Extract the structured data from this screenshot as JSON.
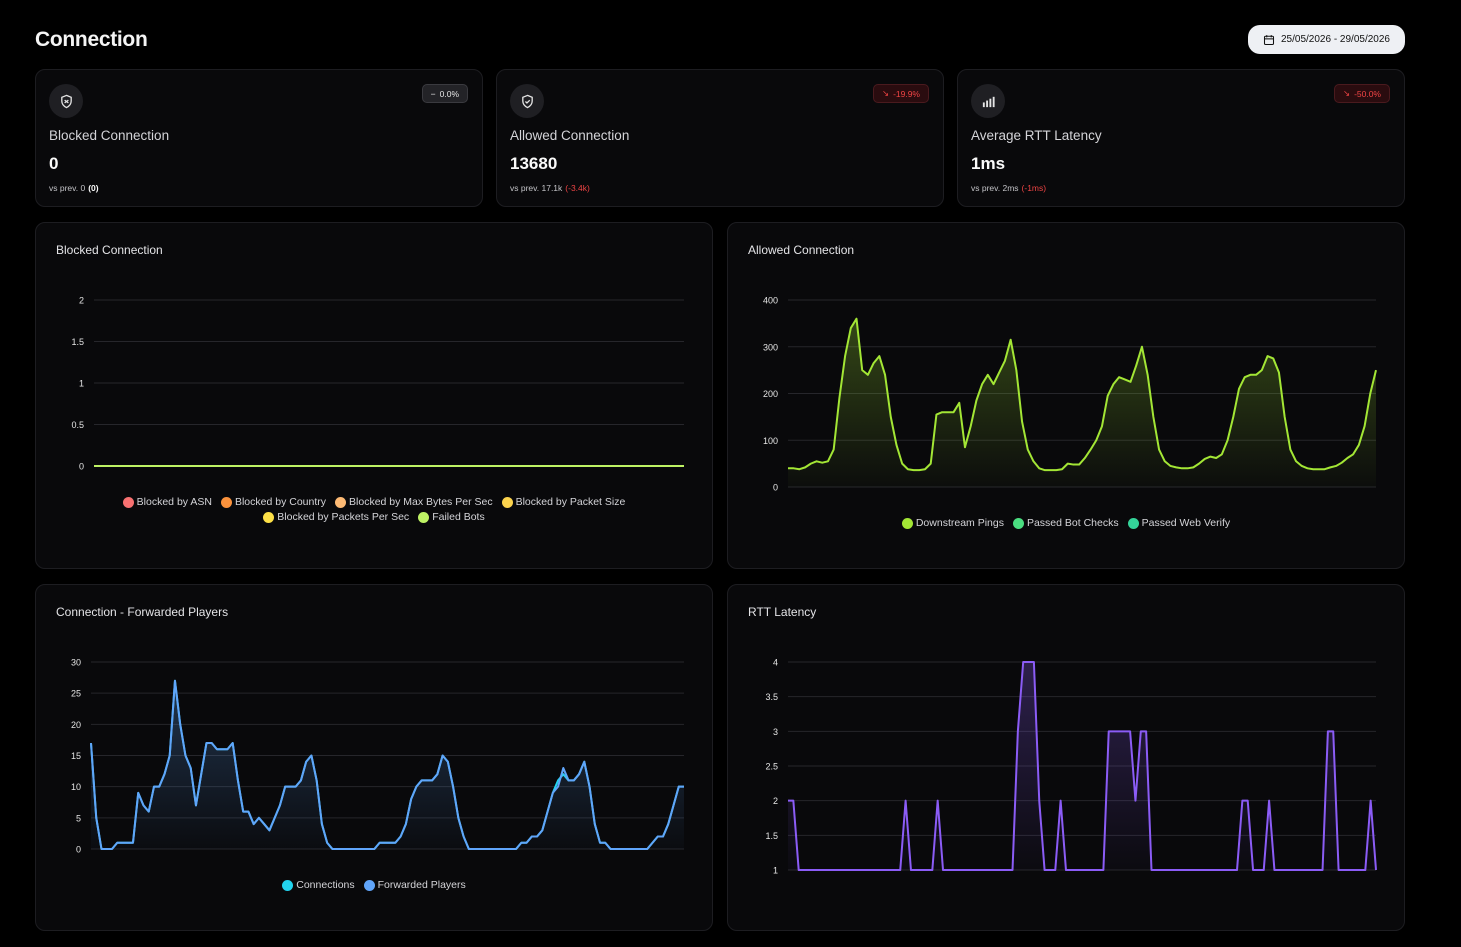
{
  "page": {
    "title": "Connection",
    "date_range": "25/05/2026 - 29/05/2026"
  },
  "stats": [
    {
      "icon": "shield-x-icon",
      "label": "Blocked Connection",
      "value": "0",
      "prev_text": "vs prev. 0",
      "prev_delta": "(0)",
      "badge": "0.0%",
      "trend": "neutral"
    },
    {
      "icon": "shield-check-icon",
      "label": "Allowed Connection",
      "value": "13680",
      "prev_text": "vs prev. 17.1k",
      "prev_delta": "(-3.4k)",
      "badge": "-19.9%",
      "trend": "down"
    },
    {
      "icon": "signal-bars-icon",
      "label": "Average RTT Latency",
      "value": "1ms",
      "prev_text": "vs prev. 2ms",
      "prev_delta": "(-1ms)",
      "badge": "-50.0%",
      "trend": "down"
    }
  ],
  "colors": {
    "blocked_asn": "#f87171",
    "blocked_country": "#fb923c",
    "blocked_max_bytes": "#fdba74",
    "blocked_packet_size": "#fcd34d",
    "blocked_packets_per_sec": "#fde047",
    "failed_bots": "#bef264",
    "downstream": "#a3e635",
    "passed_bot_checks": "#4ade80",
    "passed_web_verify": "#34d399",
    "connections": "#22d3ee",
    "forwarded": "#60a5fa",
    "rtt": "#8b5cf6"
  },
  "chart_data": [
    {
      "type": "line",
      "title": "Blocked Connection",
      "ylim": [
        0,
        2
      ],
      "yticks": [
        "0",
        "0.5",
        "1",
        "1.5",
        "2"
      ],
      "grid": true,
      "legend_position": "bottom",
      "series": [
        {
          "name": "Blocked by ASN",
          "color": "#f87171",
          "values": [
            0,
            0
          ]
        },
        {
          "name": "Blocked by Country",
          "color": "#fb923c",
          "values": [
            0,
            0
          ]
        },
        {
          "name": "Blocked by Max Bytes Per Sec",
          "color": "#fdba74",
          "values": [
            0,
            0
          ]
        },
        {
          "name": "Blocked by Packet Size",
          "color": "#fcd34d",
          "values": [
            0,
            0
          ]
        },
        {
          "name": "Blocked by Packets Per Sec",
          "color": "#fde047",
          "values": [
            0,
            0
          ]
        },
        {
          "name": "Failed Bots",
          "color": "#bef264",
          "values": [
            0,
            0
          ]
        }
      ]
    },
    {
      "type": "area",
      "title": "Allowed Connection",
      "ylim": [
        0,
        400
      ],
      "yticks": [
        "0",
        "100",
        "200",
        "300",
        "400"
      ],
      "grid": true,
      "legend_position": "bottom",
      "series": [
        {
          "name": "Downstream Pings",
          "color": "#a3e635",
          "values": [
            40,
            40,
            38,
            42,
            50,
            55,
            52,
            55,
            80,
            190,
            280,
            340,
            360,
            250,
            240,
            265,
            280,
            240,
            150,
            90,
            50,
            38,
            36,
            36,
            38,
            50,
            155,
            160,
            160,
            160,
            180,
            85,
            130,
            185,
            220,
            240,
            220,
            245,
            270,
            315,
            250,
            140,
            80,
            55,
            40,
            36,
            36,
            36,
            38,
            50,
            48,
            48,
            62,
            80,
            100,
            130,
            195,
            220,
            235,
            230,
            225,
            260,
            300,
            240,
            150,
            80,
            55,
            45,
            42,
            40,
            40,
            42,
            50,
            60,
            65,
            62,
            70,
            100,
            150,
            210,
            235,
            240,
            240,
            250,
            280,
            275,
            245,
            150,
            80,
            55,
            45,
            40,
            38,
            38,
            38,
            42,
            45,
            52,
            62,
            70,
            90,
            130,
            200,
            250
          ]
        },
        {
          "name": "Passed Bot Checks",
          "color": "#4ade80",
          "values": [
            0,
            0
          ]
        },
        {
          "name": "Passed Web Verify",
          "color": "#34d399",
          "values": [
            0,
            0
          ]
        }
      ]
    },
    {
      "type": "area",
      "title": "Connection - Forwarded Players",
      "ylim": [
        0,
        30
      ],
      "yticks": [
        "0",
        "5",
        "10",
        "15",
        "20",
        "25",
        "30"
      ],
      "grid": true,
      "legend_position": "bottom",
      "series": [
        {
          "name": "Connections",
          "color": "#22d3ee",
          "values": [
            17,
            5,
            0,
            0,
            0,
            1,
            1,
            1,
            1,
            9,
            7,
            6,
            10,
            10,
            12,
            15,
            27,
            20,
            15,
            13,
            7,
            12,
            17,
            17,
            16,
            16,
            16,
            17,
            11,
            6,
            6,
            4,
            5,
            4,
            3,
            5,
            7,
            10,
            10,
            10,
            11,
            14,
            15,
            11,
            4,
            1,
            0,
            0,
            0,
            0,
            0,
            0,
            0,
            0,
            0,
            1,
            1,
            1,
            1,
            2,
            4,
            8,
            10,
            11,
            11,
            11,
            12,
            15,
            14,
            10,
            5,
            2,
            0,
            0,
            0,
            0,
            0,
            0,
            0,
            0,
            0,
            0,
            1,
            1,
            2,
            2,
            3,
            6,
            9,
            11,
            12,
            11,
            11,
            12,
            14,
            10,
            4,
            1,
            1,
            0,
            0,
            0,
            0,
            0,
            0,
            0,
            0,
            1,
            2,
            2,
            4,
            7,
            10,
            10
          ]
        },
        {
          "name": "Forwarded Players",
          "color": "#60a5fa",
          "values": [
            17,
            5,
            0,
            0,
            0,
            1,
            1,
            1,
            1,
            9,
            7,
            6,
            10,
            10,
            12,
            15,
            27,
            20,
            15,
            13,
            7,
            12,
            17,
            17,
            16,
            16,
            16,
            17,
            11,
            6,
            6,
            4,
            5,
            4,
            3,
            5,
            7,
            10,
            10,
            10,
            11,
            14,
            15,
            11,
            4,
            1,
            0,
            0,
            0,
            0,
            0,
            0,
            0,
            0,
            0,
            1,
            1,
            1,
            1,
            2,
            4,
            8,
            10,
            11,
            11,
            11,
            12,
            15,
            14,
            10,
            5,
            2,
            0,
            0,
            0,
            0,
            0,
            0,
            0,
            0,
            0,
            0,
            1,
            1,
            2,
            2,
            3,
            6,
            9,
            10,
            13,
            11,
            11,
            12,
            14,
            10,
            4,
            1,
            1,
            0,
            0,
            0,
            0,
            0,
            0,
            0,
            0,
            1,
            2,
            2,
            4,
            7,
            10,
            10
          ]
        }
      ]
    },
    {
      "type": "area",
      "title": "RTT Latency",
      "ylim": [
        1,
        4
      ],
      "yticks": [
        "1",
        "1.5",
        "2",
        "2.5",
        "3",
        "3.5",
        "4"
      ],
      "grid": true,
      "legend_position": "none",
      "series": [
        {
          "name": "RTT",
          "color": "#8b5cf6",
          "values": [
            2,
            2,
            1,
            1,
            1,
            1,
            1,
            1,
            1,
            1,
            1,
            1,
            1,
            1,
            1,
            1,
            1,
            1,
            1,
            1,
            1,
            1,
            2,
            1,
            1,
            1,
            1,
            1,
            2,
            1,
            1,
            1,
            1,
            1,
            1,
            1,
            1,
            1,
            1,
            1,
            1,
            1,
            1,
            3,
            4,
            4,
            4,
            2,
            1,
            1,
            1,
            2,
            1,
            1,
            1,
            1,
            1,
            1,
            1,
            1,
            3,
            3,
            3,
            3,
            3,
            2,
            3,
            3,
            1,
            1,
            1,
            1,
            1,
            1,
            1,
            1,
            1,
            1,
            1,
            1,
            1,
            1,
            1,
            1,
            1,
            2,
            2,
            1,
            1,
            1,
            2,
            1,
            1,
            1,
            1,
            1,
            1,
            1,
            1,
            1,
            1,
            3,
            3,
            1,
            1,
            1,
            1,
            1,
            1,
            2,
            1
          ]
        }
      ]
    }
  ]
}
